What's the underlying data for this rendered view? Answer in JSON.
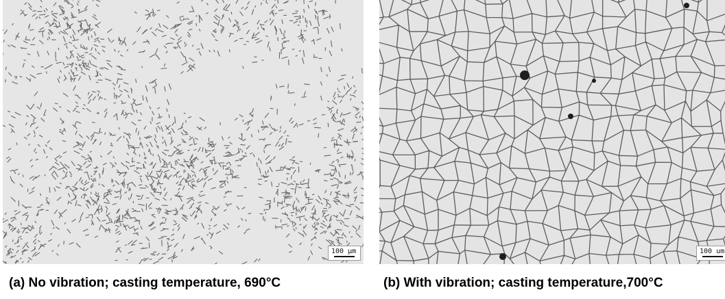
{
  "figure": {
    "panels": [
      {
        "caption": "(a) No vibration; casting temperature, 690°C",
        "scale_label": "100 µm",
        "texture": "dendritic-microstructure"
      },
      {
        "caption": "(b) With vibration; casting temperature,700°C",
        "scale_label": "100 um",
        "texture": "equiaxed-grain-microstructure"
      }
    ]
  },
  "colors": {
    "matrix_a": "#e6e6e6",
    "matrix_b": "#e4e4e4",
    "boundary": "#3a3a3a",
    "caption": "#000000"
  }
}
